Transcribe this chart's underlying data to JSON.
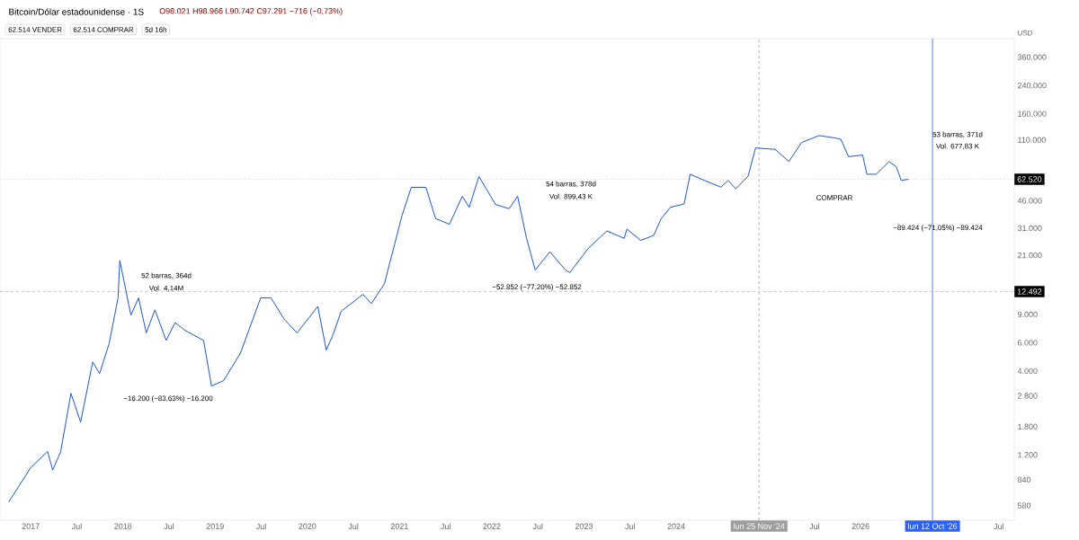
{
  "chart_data": {
    "type": "line",
    "title": "Bitcoin/Dólar estadounidense · 1S",
    "subtitle": "O98.021 H98.966 L90.742 C97.291 −716 (−0,73%)",
    "ylabel": "USD",
    "color": "#1e53e5",
    "log": true,
    "x": [
      "2016-10-05",
      "2017-01-01",
      "2017-03-07",
      "2017-03-27",
      "2017-04-28",
      "2017-06-08",
      "2017-07-16",
      "2017-09-03",
      "2017-09-30",
      "2017-11-07",
      "2017-12-12",
      "2017-12-19",
      "2018-02-02",
      "2018-03-02",
      "2018-04-02",
      "2018-05-06",
      "2018-06-20",
      "2018-07-25",
      "2018-09-04",
      "2018-11-16",
      "2018-12-17",
      "2019-02-04",
      "2019-04-10",
      "2019-06-29",
      "2019-08-09",
      "2019-09-30",
      "2019-11-21",
      "2020-02-12",
      "2020-03-15",
      "2020-04-12",
      "2020-05-13",
      "2020-08-08",
      "2020-09-11",
      "2020-11-02",
      "2021-01-11",
      "2021-02-17",
      "2021-04-14",
      "2021-05-22",
      "2021-07-16",
      "2021-09-06",
      "2021-10-03",
      "2021-11-11",
      "2022-01-16",
      "2022-03-09",
      "2022-04-12",
      "2022-05-17",
      "2022-06-21",
      "2022-08-18",
      "2022-10-19",
      "2022-11-06",
      "2023-01-18",
      "2023-03-31",
      "2023-06-08",
      "2023-06-19",
      "2023-08-13",
      "2023-10-04",
      "2023-10-31",
      "2023-12-08",
      "2024-02-02",
      "2024-02-26",
      "2024-04-21",
      "2024-06-26",
      "2024-07-24",
      "2024-08-24",
      "2024-10-12",
      "2024-11-11",
      "2025-01-28",
      "2025-03-21",
      "2025-05-11",
      "2025-07-19",
      "2025-09-23",
      "2025-10-14",
      "2025-11-14",
      "2026-01-09",
      "2026-01-26",
      "2026-03-02",
      "2026-04-22",
      "2026-05-20",
      "2026-06-10",
      "2026-07-08"
    ],
    "values": [
      610,
      1000,
      1260,
      965,
      1250,
      2900,
      1920,
      4550,
      3850,
      5900,
      11400,
      19500,
      8900,
      11400,
      6900,
      9600,
      6200,
      8000,
      7150,
      6200,
      3220,
      3480,
      5170,
      11400,
      11400,
      8440,
      6900,
      10100,
      5400,
      6750,
      9400,
      12000,
      10500,
      14000,
      37300,
      55700,
      55700,
      35600,
      32800,
      49000,
      41800,
      65000,
      43500,
      41000,
      49000,
      26800,
      17000,
      22100,
      17000,
      16400,
      23200,
      29800,
      26800,
      30600,
      26000,
      28000,
      35200,
      41800,
      43900,
      67200,
      61500,
      55800,
      61500,
      54500,
      65400,
      98000,
      96000,
      80600,
      106000,
      117000,
      113000,
      111000,
      86500,
      88500,
      67200,
      67200,
      80600,
      75000,
      61500,
      62500
    ],
    "xlim": [
      "2016-09-01",
      "2027-09-01"
    ],
    "xticks": [
      {
        "value": "2017-01",
        "label": "2017"
      },
      {
        "value": "2017-07",
        "label": "Jul"
      },
      {
        "value": "2018-01",
        "label": "2018"
      },
      {
        "value": "2018-07",
        "label": "Jul"
      },
      {
        "value": "2019-01",
        "label": "2019"
      },
      {
        "value": "2019-07",
        "label": "Jul"
      },
      {
        "value": "2020-01",
        "label": "2020"
      },
      {
        "value": "2020-07",
        "label": "Jul"
      },
      {
        "value": "2021-01",
        "label": "2021"
      },
      {
        "value": "2021-07",
        "label": "Jul"
      },
      {
        "value": "2022-01",
        "label": "2022"
      },
      {
        "value": "2022-07",
        "label": "Jul"
      },
      {
        "value": "2023-01",
        "label": "2023"
      },
      {
        "value": "2023-07",
        "label": "Jul"
      },
      {
        "value": "2024-01",
        "label": "2024"
      },
      {
        "value": "2025-07",
        "label": "Jul"
      },
      {
        "value": "2026-01",
        "label": "2026"
      },
      {
        "value": "2027-07",
        "label": "Jul"
      }
    ],
    "ylim": [
      470,
      470000
    ],
    "yticks": [
      {
        "value": 580,
        "label": "580"
      },
      {
        "value": 840,
        "label": "840"
      },
      {
        "value": 1200,
        "label": "1.200"
      },
      {
        "value": 1800,
        "label": "1.800"
      },
      {
        "value": 2800,
        "label": "2.800"
      },
      {
        "value": 4000,
        "label": "4.000"
      },
      {
        "value": 6000,
        "label": "6.000"
      },
      {
        "value": 9000,
        "label": "9.000"
      },
      {
        "value": 21000,
        "label": "21.000"
      },
      {
        "value": 31000,
        "label": "31.000"
      },
      {
        "value": 46000,
        "label": "46.000"
      },
      {
        "value": 110000,
        "label": "110.000"
      },
      {
        "value": 160000,
        "label": "160.000"
      },
      {
        "value": 240000,
        "label": "240.000"
      },
      {
        "value": 360000,
        "label": "360.000"
      }
    ],
    "ref_lines": [
      {
        "axis": "x",
        "value": "2026-10-12",
        "label": "lun 12 Oct '26",
        "color": "#2962ff",
        "line_style": "solid"
      },
      {
        "axis": "x",
        "value": "2024-11-25",
        "label": "lun 25 Nov '24",
        "color": "#9e9e9e",
        "line_style": "dashed"
      },
      {
        "axis": "y",
        "value": 12492,
        "label": "12.492",
        "color": "#9e9e9e",
        "line_style": "dashed"
      },
      {
        "axis": "y",
        "value": 62520,
        "label": "62.520",
        "color": "#9e9e9e",
        "line_style": "dotted"
      }
    ],
    "annotations": [
      "62.514 VENDER",
      "62.514 COMPRAR",
      "5d 16h",
      "52 barras, 364d",
      "Vol. 4,14M",
      "−16.200 (−83,63%) −16.200",
      "54 barras, 378d",
      "Vol. 899,43 K",
      "−52.852 (−77,20%) −52.852",
      "53 barras, 371d",
      "Vol. 677,83 K",
      "−89.424 (−71,05%) −89.424",
      "COMPRAR"
    ]
  }
}
